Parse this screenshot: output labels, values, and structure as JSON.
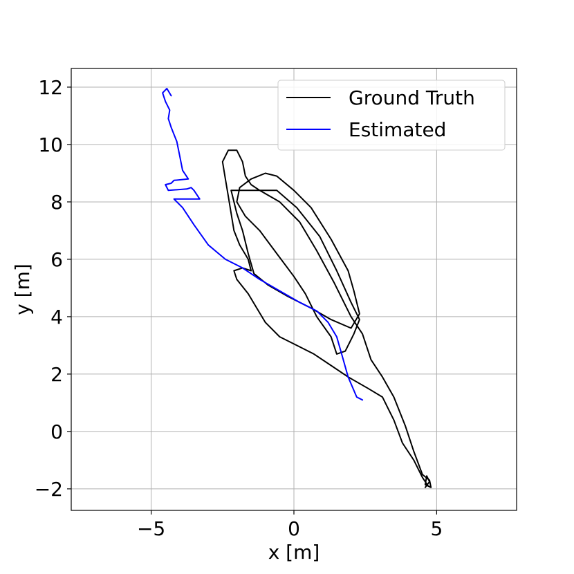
{
  "chart_data": {
    "type": "line",
    "title": "",
    "xlabel": "x [m]",
    "ylabel": "y [m]",
    "xlim": [
      -7.8,
      7.8
    ],
    "ylim": [
      -2.75,
      12.65
    ],
    "xticks": [
      -5,
      0,
      5
    ],
    "yticks": [
      -2,
      0,
      2,
      4,
      6,
      8,
      10,
      12
    ],
    "xtick_labels": [
      "−5",
      "0",
      "5"
    ],
    "ytick_labels": [
      "−2",
      "0",
      "2",
      "4",
      "6",
      "8",
      "10",
      "12"
    ],
    "grid": true,
    "legend_position": "top-right",
    "series": [
      {
        "name": "Ground Truth",
        "color": "#000000",
        "points": [
          [
            4.7,
            -1.9
          ],
          [
            4.5,
            -1.6
          ],
          [
            4.2,
            -1.0
          ],
          [
            3.8,
            -0.4
          ],
          [
            3.5,
            0.4
          ],
          [
            3.3,
            0.8
          ],
          [
            3.1,
            1.2
          ],
          [
            2.6,
            1.5
          ],
          [
            1.9,
            1.9
          ],
          [
            1.3,
            2.3
          ],
          [
            0.7,
            2.7
          ],
          [
            0.1,
            3.0
          ],
          [
            -0.5,
            3.3
          ],
          [
            -1.0,
            3.8
          ],
          [
            -1.3,
            4.3
          ],
          [
            -1.6,
            4.8
          ],
          [
            -2.0,
            5.3
          ],
          [
            -2.1,
            5.6
          ],
          [
            -1.8,
            5.7
          ],
          [
            -1.5,
            5.6
          ],
          [
            -1.6,
            6.0
          ],
          [
            -1.9,
            6.5
          ],
          [
            -2.1,
            7.0
          ],
          [
            -2.2,
            7.6
          ],
          [
            -2.3,
            8.2
          ],
          [
            -2.4,
            8.8
          ],
          [
            -2.5,
            9.4
          ],
          [
            -2.3,
            9.8
          ],
          [
            -2.0,
            9.8
          ],
          [
            -1.8,
            9.4
          ],
          [
            -1.7,
            8.9
          ],
          [
            -1.5,
            8.6
          ],
          [
            -1.2,
            8.4
          ],
          [
            -0.6,
            8.4
          ],
          [
            0.1,
            7.8
          ],
          [
            0.9,
            6.8
          ],
          [
            1.5,
            5.6
          ],
          [
            2.0,
            4.5
          ],
          [
            2.3,
            3.9
          ],
          [
            2.1,
            3.4
          ],
          [
            1.8,
            2.8
          ],
          [
            1.5,
            2.7
          ],
          [
            1.3,
            3.3
          ],
          [
            0.8,
            4.0
          ],
          [
            0.4,
            4.8
          ],
          [
            0.0,
            5.4
          ],
          [
            -0.6,
            6.2
          ],
          [
            -1.2,
            7.0
          ],
          [
            -1.7,
            7.5
          ],
          [
            -2.0,
            8.0
          ],
          [
            -1.9,
            8.5
          ],
          [
            -1.5,
            8.8
          ],
          [
            -1.0,
            9.0
          ],
          [
            -0.6,
            8.9
          ],
          [
            0.0,
            8.4
          ],
          [
            0.6,
            7.8
          ],
          [
            1.3,
            6.7
          ],
          [
            1.9,
            5.6
          ],
          [
            2.1,
            4.9
          ],
          [
            2.3,
            4.1
          ],
          [
            2.0,
            3.6
          ],
          [
            1.3,
            3.9
          ],
          [
            0.6,
            4.3
          ],
          [
            -0.2,
            4.7
          ],
          [
            -0.9,
            5.1
          ],
          [
            -1.4,
            5.5
          ],
          [
            -1.6,
            6.2
          ],
          [
            -1.8,
            7.0
          ],
          [
            -2.0,
            7.6
          ],
          [
            -2.2,
            8.4
          ],
          [
            -1.9,
            8.4
          ],
          [
            -1.2,
            8.4
          ],
          [
            -0.5,
            8.0
          ],
          [
            0.2,
            7.3
          ],
          [
            0.8,
            6.3
          ],
          [
            1.4,
            5.2
          ],
          [
            2.0,
            4.0
          ],
          [
            2.4,
            3.4
          ],
          [
            2.7,
            2.5
          ],
          [
            3.1,
            1.9
          ],
          [
            3.5,
            1.2
          ],
          [
            3.9,
            0.2
          ],
          [
            4.2,
            -0.7
          ],
          [
            4.5,
            -1.5
          ],
          [
            4.75,
            -1.7
          ],
          [
            4.8,
            -1.95
          ],
          [
            4.6,
            -1.85
          ],
          [
            4.65,
            -1.55
          ],
          [
            4.75,
            -1.75
          ],
          [
            4.6,
            -1.95
          ]
        ]
      },
      {
        "name": "Estimated",
        "color": "#0000ff",
        "points": [
          [
            2.4,
            1.1
          ],
          [
            2.2,
            1.2
          ],
          [
            1.9,
            1.9
          ],
          [
            1.7,
            2.6
          ],
          [
            1.5,
            3.3
          ],
          [
            1.2,
            3.8
          ],
          [
            0.8,
            4.2
          ],
          [
            0.2,
            4.5
          ],
          [
            -0.5,
            4.9
          ],
          [
            -1.2,
            5.3
          ],
          [
            -1.8,
            5.7
          ],
          [
            -2.4,
            6.0
          ],
          [
            -3.0,
            6.5
          ],
          [
            -3.5,
            7.2
          ],
          [
            -3.9,
            7.8
          ],
          [
            -4.2,
            8.1
          ],
          [
            -3.3,
            8.1
          ],
          [
            -3.5,
            8.4
          ],
          [
            -3.6,
            8.5
          ],
          [
            -3.75,
            8.45
          ],
          [
            -4.4,
            8.4
          ],
          [
            -4.5,
            8.6
          ],
          [
            -4.3,
            8.65
          ],
          [
            -4.2,
            8.75
          ],
          [
            -3.7,
            8.8
          ],
          [
            -3.9,
            9.1
          ],
          [
            -4.0,
            9.6
          ],
          [
            -4.1,
            10.1
          ],
          [
            -4.3,
            10.6
          ],
          [
            -4.4,
            10.9
          ],
          [
            -4.35,
            11.2
          ],
          [
            -4.5,
            11.5
          ],
          [
            -4.6,
            11.8
          ],
          [
            -4.45,
            11.95
          ],
          [
            -4.3,
            11.7
          ]
        ]
      }
    ]
  }
}
